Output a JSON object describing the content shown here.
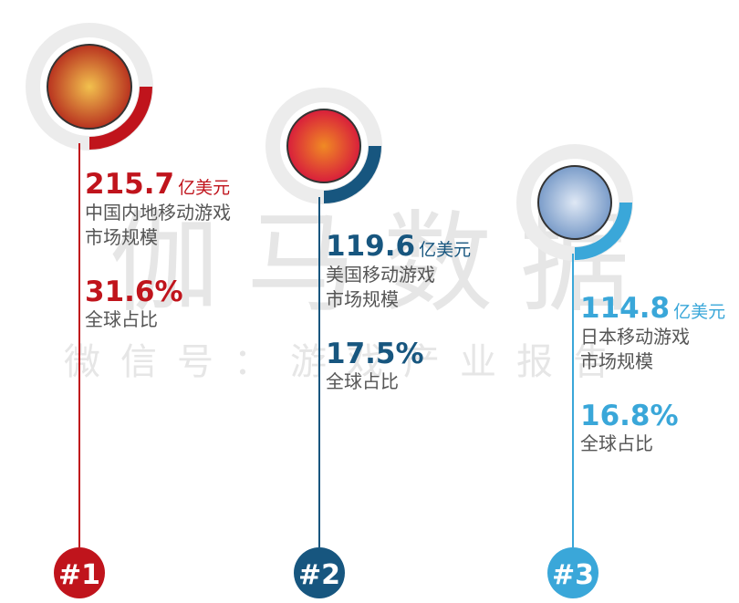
{
  "watermark": {
    "title": "伽马数据",
    "subtitle": "微信号：游戏产业报告"
  },
  "items": [
    {
      "rank": "#1",
      "amount": "215.7",
      "unit": "亿美元",
      "label_lines": [
        "中国内地移动游戏",
        "市场规模"
      ],
      "share": "31.6%",
      "share_label": "全球占比",
      "color": "#c0141c"
    },
    {
      "rank": "#2",
      "amount": "119.6",
      "unit": "亿美元",
      "label_lines": [
        "美国移动游戏",
        "市场规模"
      ],
      "share": "17.5%",
      "share_label": "全球占比",
      "color": "#17567f"
    },
    {
      "rank": "#3",
      "amount": "114.8",
      "unit": "亿美元",
      "label_lines": [
        "日本移动游戏",
        "市场规模"
      ],
      "share": "16.8%",
      "share_label": "全球占比",
      "color": "#3aa7d9"
    }
  ]
}
